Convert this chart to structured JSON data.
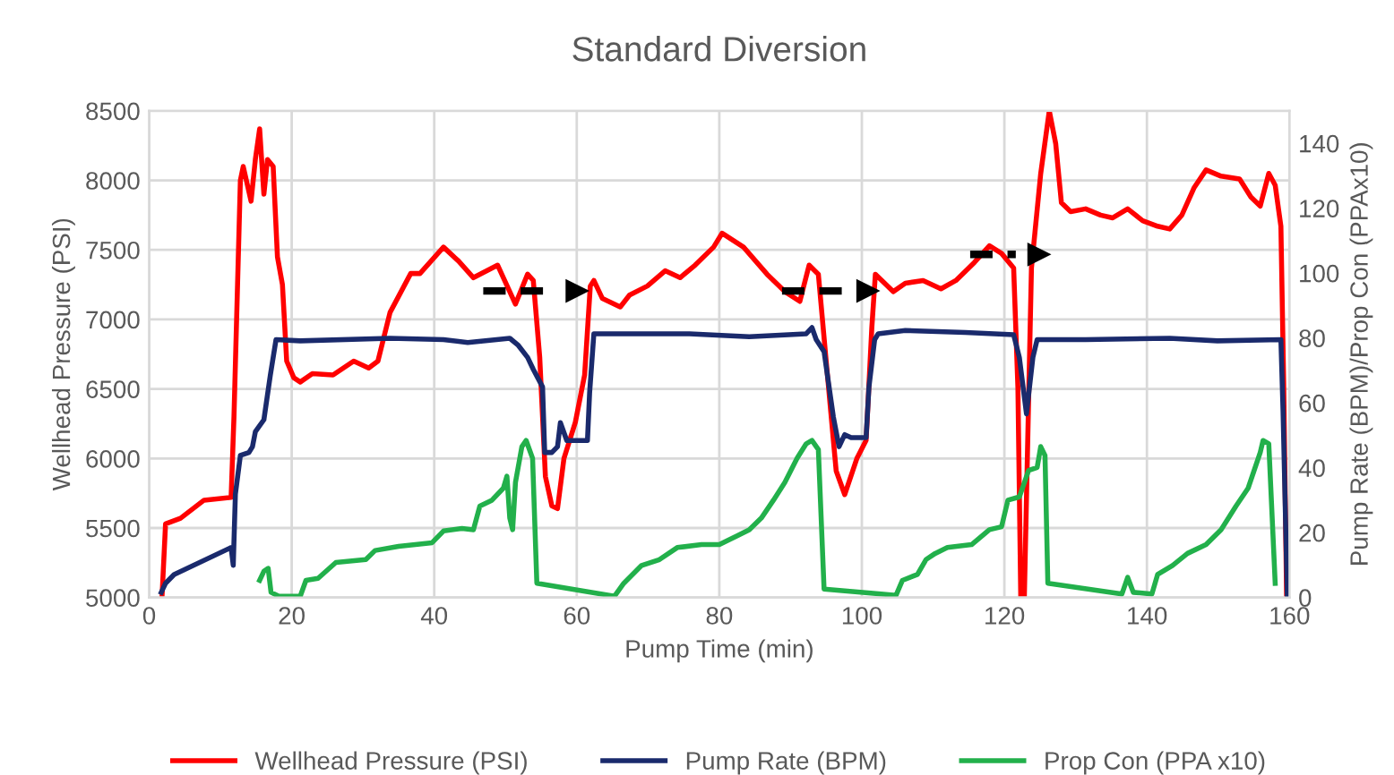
{
  "chart_data": {
    "type": "line",
    "title": "Standard Diversion",
    "xlabel": "Pump Time (min)",
    "ylabel": "Wellhead Pressure (PSI)",
    "y2label": "Pump Rate (BPM)/Prop Con (PPAx10)",
    "xlim": [
      0,
      160
    ],
    "xticks": [
      0,
      20,
      40,
      60,
      80,
      100,
      120,
      140,
      160
    ],
    "ylim": [
      5000,
      8500
    ],
    "yticks": [
      5000,
      5500,
      6000,
      6500,
      7000,
      7500,
      8000,
      8500
    ],
    "y2lim": [
      0,
      150
    ],
    "y2ticks": [
      0,
      20,
      40,
      60,
      80,
      100,
      120,
      140
    ],
    "grid": true,
    "legend": "bottom",
    "marker": "none",
    "line_style": "solid",
    "series": [
      {
        "name": "Wellhead Pressure (PSI)",
        "color": "#ff0000",
        "x": [
          1.8,
          2.3,
          4.4,
          7.7,
          11.5,
          11.9,
          12.8,
          13.2,
          14.3,
          14.9,
          15.5,
          16.1,
          16.6,
          17.4,
          18,
          18.7,
          19.3,
          20.3,
          21.2,
          22.9,
          25.8,
          28.7,
          30.8,
          32.1,
          33.8,
          36.7,
          38,
          41.3,
          43.4,
          45.5,
          48.9,
          51.4,
          53.1,
          53.9,
          54.8,
          55.6,
          56.5,
          57.3,
          58.2,
          59.8,
          61.1,
          61.9,
          62.4,
          63.6,
          66.1,
          67.4,
          69.9,
          72.4,
          74.5,
          76.6,
          79.2,
          80.4,
          83.4,
          86.7,
          89.2,
          91.3,
          92.6,
          93.9,
          95.1,
          96.4,
          97.6,
          99.3,
          100.6,
          101.4,
          101.9,
          104.4,
          106.1,
          108.6,
          111.1,
          113.2,
          115.8,
          117.9,
          119.6,
          121.3,
          121.9,
          122.3,
          122.8,
          123.8,
          125.1,
          126.3,
          127.2,
          128,
          129.3,
          131.4,
          133.5,
          135.2,
          137.3,
          139.4,
          141.5,
          143.2,
          144.9,
          146.6,
          148.3,
          150.4,
          153,
          154.6,
          155.9,
          157.1,
          158,
          158.8,
          159.2,
          159.6
        ],
        "values": [
          5000,
          5530,
          5570,
          5700,
          5720,
          6300,
          8000,
          8100,
          7850,
          8150,
          8370,
          7900,
          8150,
          8100,
          7450,
          7250,
          6700,
          6580,
          6550,
          6610,
          6600,
          6700,
          6650,
          6700,
          7050,
          7330,
          7330,
          7520,
          7420,
          7300,
          7390,
          7110,
          7325,
          7280,
          6730,
          5870,
          5660,
          5640,
          6000,
          6260,
          6600,
          7240,
          7280,
          7150,
          7090,
          7175,
          7240,
          7350,
          7300,
          7390,
          7520,
          7620,
          7520,
          7325,
          7200,
          7130,
          7390,
          7325,
          6640,
          5910,
          5740,
          6000,
          6130,
          6940,
          7325,
          7200,
          7260,
          7280,
          7220,
          7280,
          7410,
          7530,
          7475,
          7370,
          6510,
          5000,
          5000,
          7370,
          8050,
          8500,
          8265,
          7840,
          7775,
          7795,
          7750,
          7730,
          7795,
          7710,
          7670,
          7650,
          7750,
          7945,
          8075,
          8030,
          8010,
          7880,
          7815,
          8050,
          7965,
          7670,
          6510,
          5000
        ]
      },
      {
        "name": "Pump Rate (BPM)",
        "color": "#1a2a6c",
        "axis": "y2",
        "x": [
          1.7,
          2.3,
          3.5,
          11.5,
          11.8,
          12.1,
          12.8,
          14,
          14.5,
          14.9,
          16.1,
          17,
          17.8,
          21.2,
          33.8,
          41.3,
          44.7,
          50.6,
          51.8,
          53.1,
          53.9,
          55.2,
          55.5,
          56.5,
          57.3,
          57.7,
          58.6,
          61.5,
          61.8,
          62.4,
          75.8,
          84.2,
          92.2,
          93,
          93.6,
          94.7,
          96,
          96.8,
          97.6,
          98.5,
          100.6,
          101,
          101.8,
          102.3,
          106.1,
          114.5,
          121.3,
          122.1,
          123.1,
          124,
          124.6,
          131.4,
          143.2,
          149.9,
          158.8,
          159.1,
          159.7
        ],
        "values": [
          1.6,
          4.4,
          7.1,
          15.4,
          9.9,
          31.9,
          43.8,
          44.7,
          46.5,
          51.1,
          54.8,
          68.5,
          79.5,
          79.1,
          79.9,
          79.5,
          78.6,
          79.9,
          77.7,
          74,
          70.3,
          64.9,
          44.7,
          44.7,
          46.5,
          53.9,
          48.4,
          48.4,
          63,
          81.3,
          81.3,
          80.4,
          81.3,
          83.2,
          79.5,
          75.8,
          55.7,
          46.5,
          50.2,
          49.3,
          49.3,
          64.9,
          79.5,
          81.3,
          82.3,
          81.7,
          81,
          74,
          56.6,
          74,
          79.5,
          79.5,
          79.9,
          79.1,
          79.5,
          57.5,
          0
        ]
      },
      {
        "name": "Prop Con (PPA x10)",
        "color": "#22b04b",
        "axis": "y2",
        "x": [
          15.5,
          16.1,
          16.7,
          17.1,
          18.2,
          21.2,
          22,
          23.7,
          26.2,
          30.4,
          31.7,
          35,
          39.7,
          41.3,
          43.9,
          45.5,
          46.4,
          48.1,
          49.7,
          50.2,
          50.6,
          51,
          51.4,
          52.3,
          52.9,
          53.8,
          54.4,
          65.3,
          66.6,
          69.1,
          71.6,
          74.1,
          77.5,
          80,
          82.5,
          84.2,
          85.9,
          87.6,
          89.2,
          90.9,
          92.2,
          93,
          93.9,
          94.7,
          102.7,
          104.8,
          105.7,
          107.8,
          109,
          110.3,
          112,
          115.4,
          117.9,
          119.6,
          120.5,
          122.1,
          123.4,
          124.6,
          125.1,
          125.7,
          126.1,
          136.5,
          137.3,
          138.1,
          140.7,
          141.5,
          143.6,
          145.7,
          148.3,
          150.4,
          152.5,
          154.2,
          155.9,
          156.3,
          157.1,
          158
        ],
        "values": [
          5.3,
          8.1,
          9,
          1.6,
          0.4,
          0.4,
          5.3,
          5.9,
          10.8,
          11.7,
          14.5,
          15.8,
          16.9,
          20.5,
          21.3,
          20.9,
          28.2,
          30,
          33.7,
          37.4,
          24.5,
          20.9,
          35.5,
          46.5,
          48.4,
          42.9,
          4.4,
          0.4,
          4.4,
          9.9,
          11.7,
          15.4,
          16.3,
          16.3,
          19,
          20.9,
          24.5,
          30,
          35.5,
          42.9,
          47.4,
          48.4,
          45.6,
          2.6,
          1.1,
          0.7,
          5.3,
          7.1,
          11.7,
          13.6,
          15.4,
          16.3,
          20.9,
          21.8,
          30,
          31,
          39.2,
          40.1,
          46.5,
          43.8,
          4.4,
          1.1,
          6.2,
          1.6,
          1.1,
          7.1,
          9.9,
          13.6,
          16.3,
          20.9,
          28.2,
          33.7,
          44.7,
          48.4,
          47.4,
          4.4
        ]
      }
    ]
  }
}
